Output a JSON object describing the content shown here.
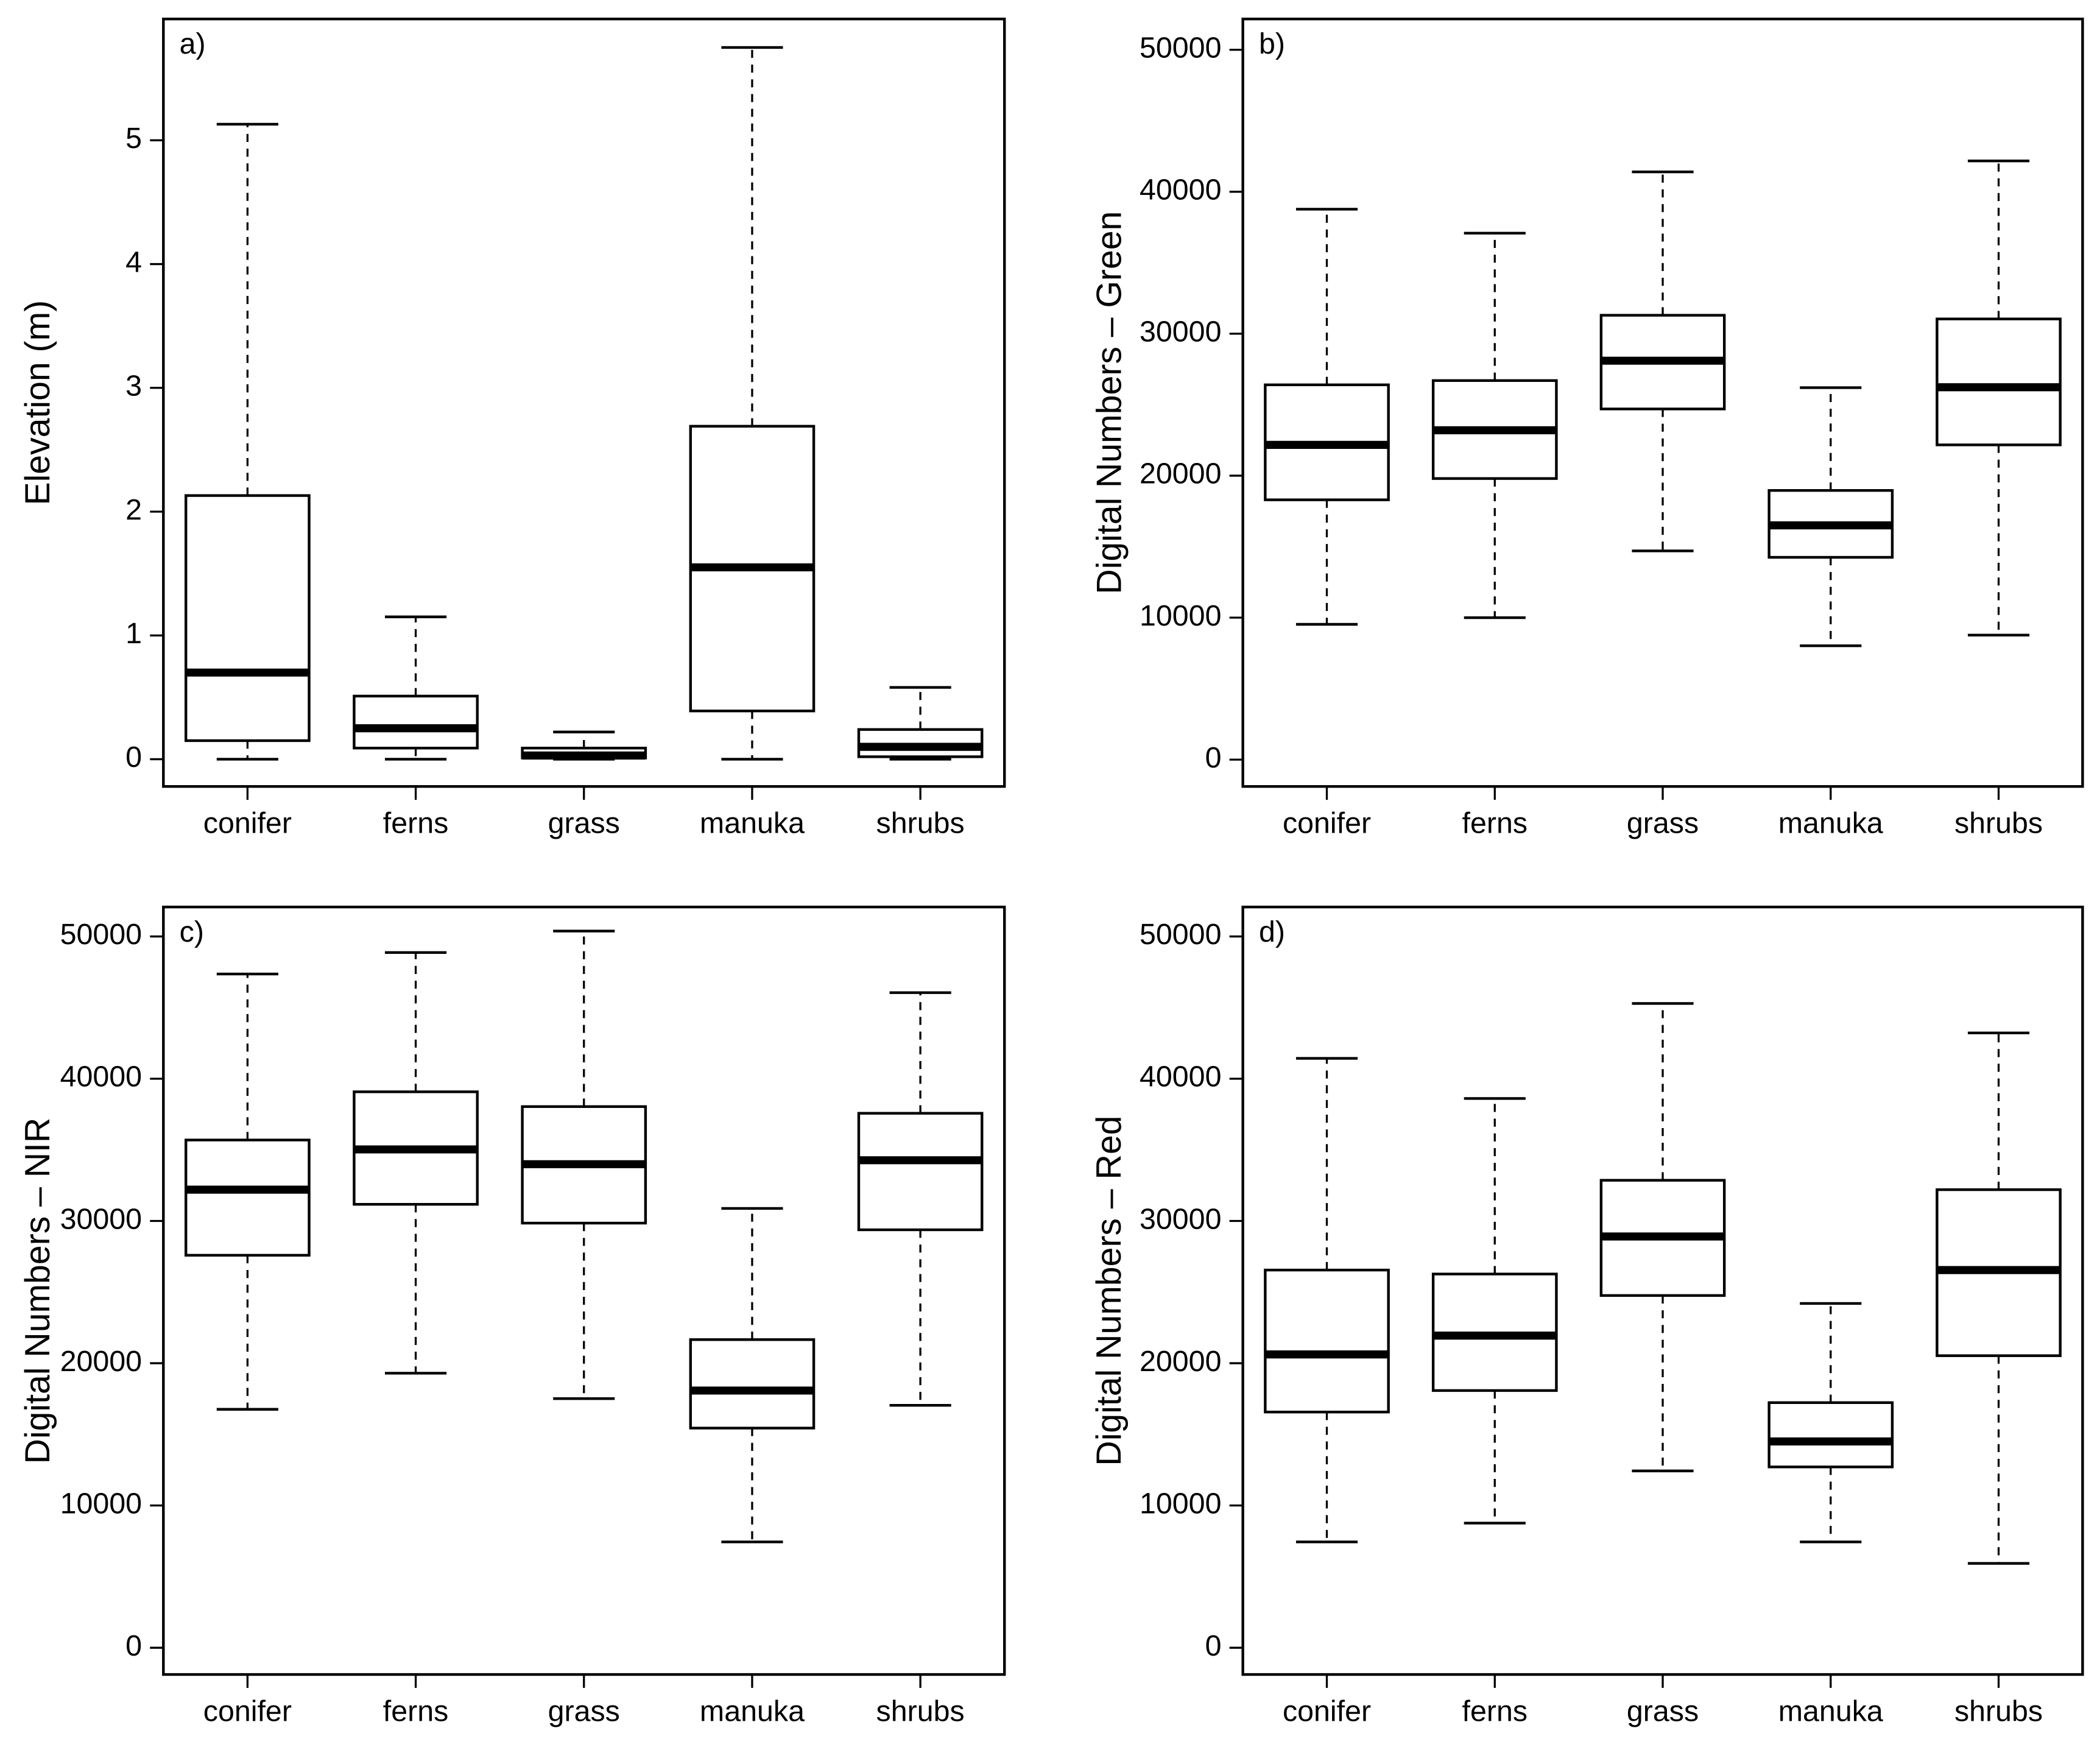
{
  "chart_data": [
    {
      "type": "box",
      "panel_label": "a)",
      "y_label": "Elevation (m)",
      "categories": [
        "conifer",
        "ferns",
        "grass",
        "manuka",
        "shrubs"
      ],
      "min": [
        0,
        0,
        0,
        0,
        0
      ],
      "q1": [
        0.15,
        0.09,
        0.01,
        0.39,
        0.02
      ],
      "median": [
        0.7,
        0.25,
        0.03,
        1.55,
        0.1
      ],
      "q3": [
        2.13,
        0.51,
        0.09,
        2.69,
        0.24
      ],
      "max": [
        5.13,
        1.15,
        0.22,
        5.75,
        0.58
      ],
      "ylim": [
        -0.22,
        5.98
      ],
      "yticks": [
        0,
        1,
        2,
        3,
        4,
        5
      ]
    },
    {
      "type": "box",
      "panel_label": "b)",
      "y_label": "Digital Numbers – Green",
      "categories": [
        "conifer",
        "ferns",
        "grass",
        "manuka",
        "shrubs"
      ],
      "min": [
        9530,
        10000,
        14700,
        8020,
        8770
      ],
      "q1": [
        18300,
        19800,
        24700,
        14250,
        22170
      ],
      "median": [
        22170,
        23200,
        28100,
        16500,
        26230
      ],
      "q3": [
        26400,
        26700,
        31300,
        18960,
        31040
      ],
      "max": [
        38770,
        37080,
        41400,
        26200,
        42170
      ],
      "ylim": [
        -1890,
        52170
      ],
      "yticks": [
        0,
        10000,
        20000,
        30000,
        40000,
        50000
      ]
    },
    {
      "type": "box",
      "panel_label": "c)",
      "y_label": "Digital Numbers – NIR",
      "categories": [
        "conifer",
        "ferns",
        "grass",
        "manuka",
        "shrubs"
      ],
      "min": [
        16760,
        19300,
        17510,
        7440,
        17040
      ],
      "q1": [
        27590,
        31170,
        29850,
        15440,
        29380
      ],
      "median": [
        32200,
        35030,
        33990,
        18080,
        34270
      ],
      "q3": [
        35690,
        39080,
        38040,
        21660,
        37570
      ],
      "max": [
        47360,
        48870,
        50380,
        30880,
        46050
      ],
      "ylim": [
        -1880,
        52070
      ],
      "yticks": [
        0,
        10000,
        20000,
        30000,
        40000,
        50000
      ]
    },
    {
      "type": "box",
      "panel_label": "d)",
      "y_label": "Digital Numbers – Red",
      "categories": [
        "conifer",
        "ferns",
        "grass",
        "manuka",
        "shrubs"
      ],
      "min": [
        7440,
        8760,
        12430,
        7440,
        5930
      ],
      "q1": [
        16570,
        18080,
        24760,
        12710,
        20530
      ],
      "median": [
        20620,
        21940,
        28910,
        14500,
        26550
      ],
      "q3": [
        26550,
        26270,
        32860,
        17230,
        32200
      ],
      "max": [
        41430,
        38610,
        45290,
        24200,
        43220
      ],
      "ylim": [
        -1880,
        52070
      ],
      "yticks": [
        0,
        10000,
        20000,
        30000,
        40000,
        50000
      ]
    }
  ]
}
